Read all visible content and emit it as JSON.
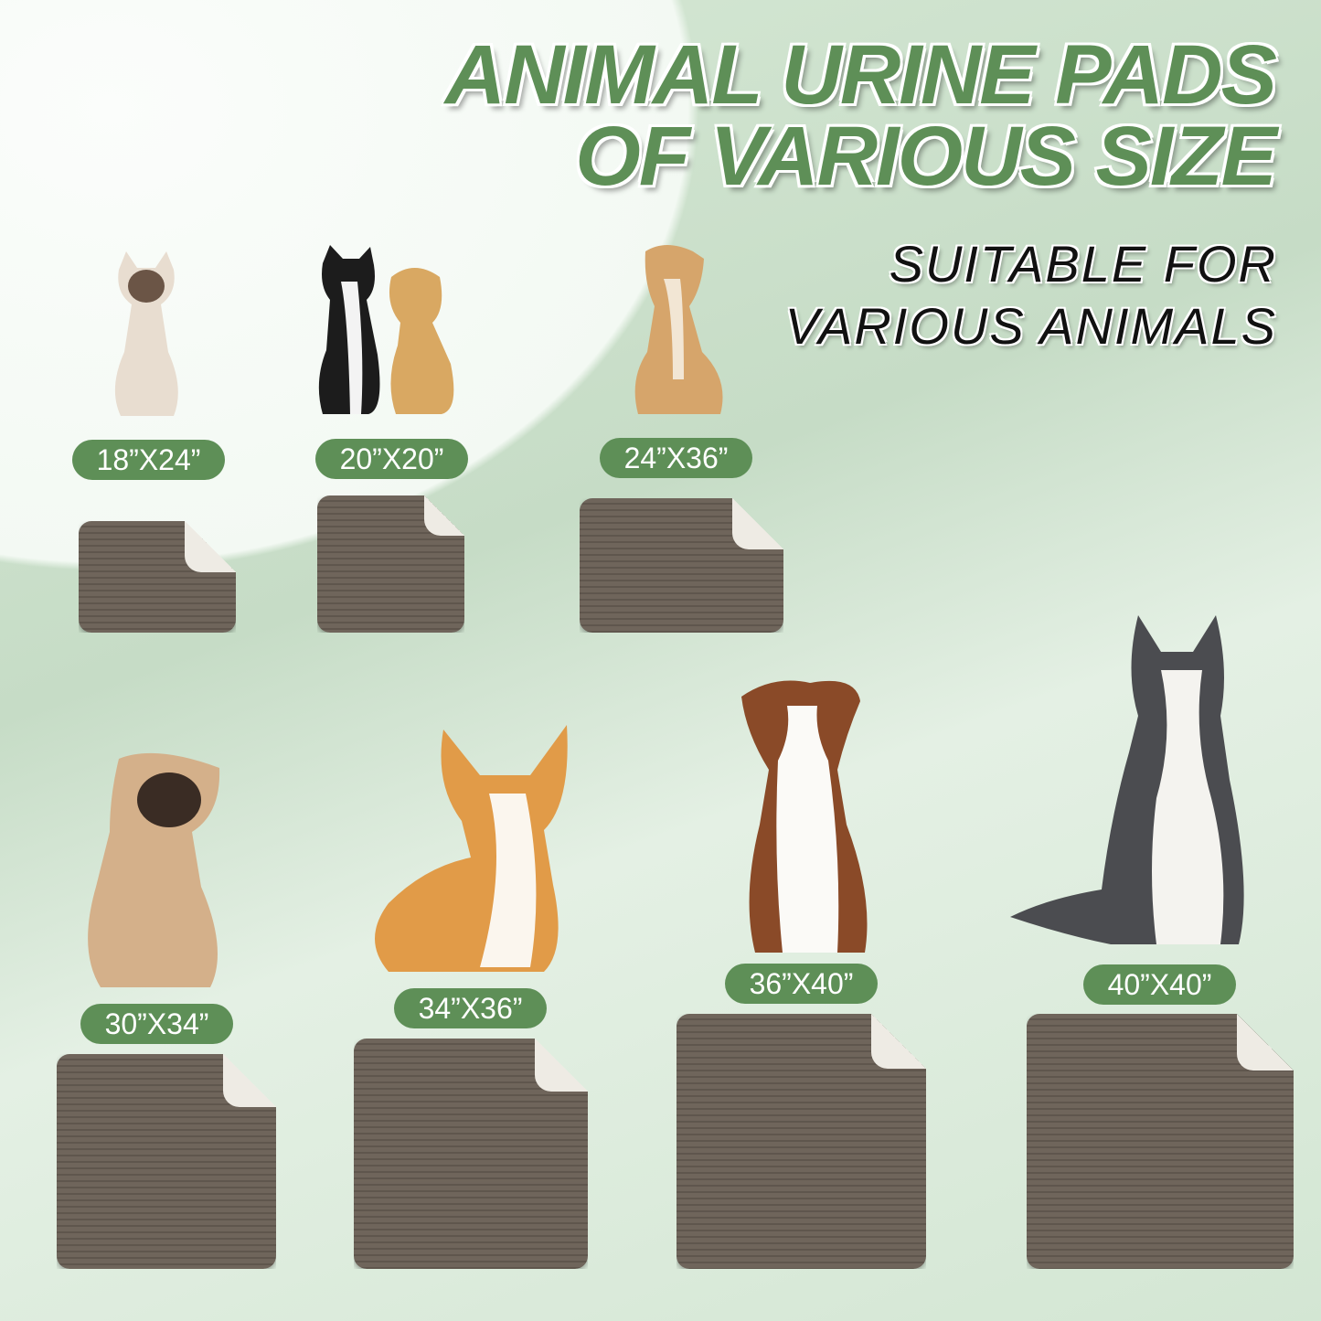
{
  "headline": {
    "line1": "ANIMAL URINE PADS",
    "line2": "OF VARIOUS SIZE"
  },
  "subheadline": {
    "line1": "SUITABLE FOR",
    "line2": "VARIOUS ANIMALS"
  },
  "colors": {
    "accent": "#5e8f57",
    "pad": "#6f655b",
    "pad_back": "#eeebe4"
  },
  "sizes": [
    {
      "label": "18”X24”",
      "animal": "siamese-cat"
    },
    {
      "label": "20”X20”",
      "animal": "cat-and-puppy"
    },
    {
      "label": "24”X36”",
      "animal": "mixed-dog"
    },
    {
      "label": "30”X34”",
      "animal": "pug"
    },
    {
      "label": "34”X36”",
      "animal": "corgi"
    },
    {
      "label": "36”X40”",
      "animal": "australian-shepherd"
    },
    {
      "label": "40”X40”",
      "animal": "husky"
    }
  ]
}
